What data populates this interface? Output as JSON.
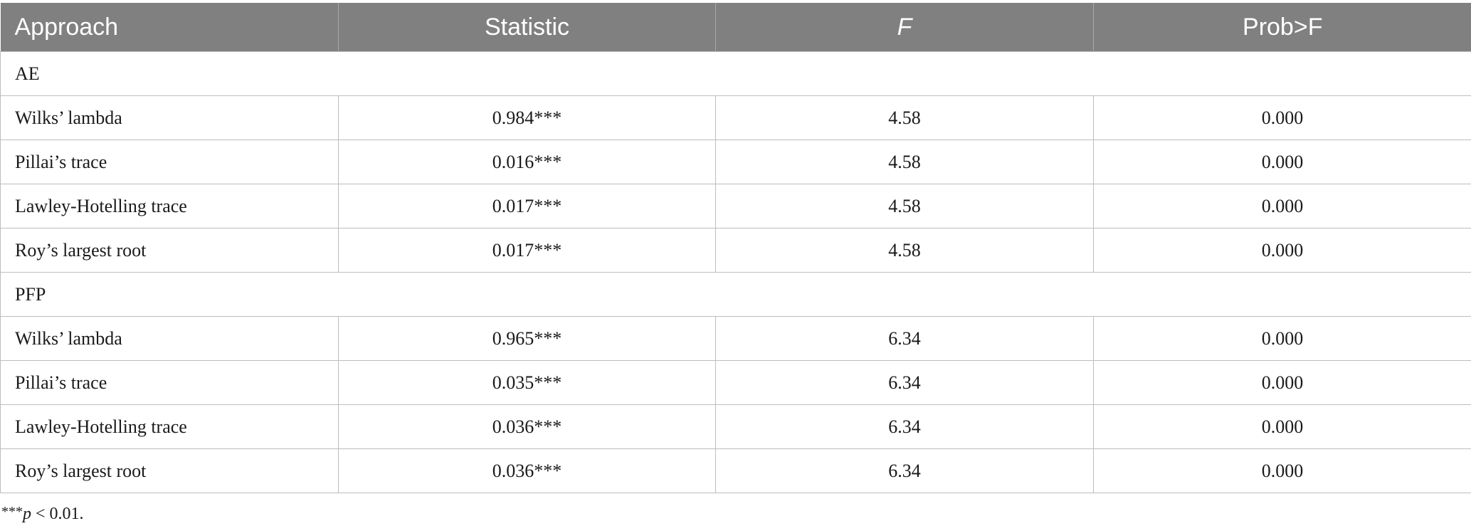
{
  "table": {
    "headers": [
      "Approach",
      "Statistic",
      "F",
      "Prob>F"
    ],
    "groups": [
      {
        "name": "AE",
        "rows": [
          {
            "label": "Wilks’ lambda",
            "statistic": "0.984***",
            "f": "4.58",
            "prob": "0.000"
          },
          {
            "label": "Pillai’s trace",
            "statistic": "0.016***",
            "f": "4.58",
            "prob": "0.000"
          },
          {
            "label": "Lawley-Hotelling trace",
            "statistic": "0.017***",
            "f": "4.58",
            "prob": "0.000"
          },
          {
            "label": "Roy’s largest root",
            "statistic": "0.017***",
            "f": "4.58",
            "prob": "0.000"
          }
        ]
      },
      {
        "name": "PFP",
        "rows": [
          {
            "label": "Wilks’ lambda",
            "statistic": "0.965***",
            "f": "6.34",
            "prob": "0.000"
          },
          {
            "label": "Pillai’s trace",
            "statistic": "0.035***",
            "f": "6.34",
            "prob": "0.000"
          },
          {
            "label": "Lawley-Hotelling trace",
            "statistic": "0.036***",
            "f": "6.34",
            "prob": "0.000"
          },
          {
            "label": "Roy’s largest root",
            "statistic": "0.036***",
            "f": "6.34",
            "prob": "0.000"
          }
        ]
      }
    ]
  },
  "footnote": {
    "symbol": "***",
    "variable": "p",
    "text": " < 0.01."
  }
}
